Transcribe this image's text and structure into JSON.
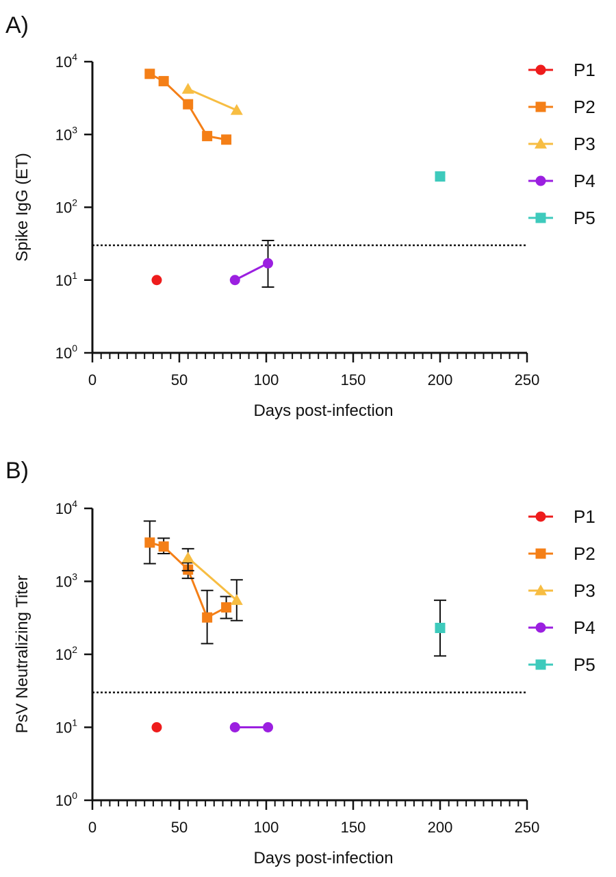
{
  "chart_data": [
    {
      "type": "scatter",
      "panel_label": "A)",
      "title": "",
      "xlabel": "Days post-infection",
      "ylabel": "Spike IgG (ET)",
      "xlim": [
        0,
        250
      ],
      "ylim": [
        1,
        10000
      ],
      "yscale": "log",
      "xticks": [
        0,
        50,
        100,
        150,
        200,
        250
      ],
      "xtick_labels": [
        "0",
        "50",
        "100",
        "150",
        "200",
        "250"
      ],
      "yticks": [
        1,
        10,
        100,
        1000,
        10000
      ],
      "ytick_base": "10",
      "ytick_exponents": [
        "0",
        "1",
        "2",
        "3",
        "4"
      ],
      "threshold": 30,
      "legend_position": "right",
      "series": [
        {
          "name": "P1",
          "color": "#ee1c1c",
          "marker": "circle",
          "x": [
            37
          ],
          "y": [
            10
          ]
        },
        {
          "name": "P2",
          "color": "#f47f17",
          "marker": "square",
          "x": [
            33,
            41,
            55,
            66,
            77
          ],
          "y": [
            6800,
            5400,
            2600,
            950,
            850
          ]
        },
        {
          "name": "P3",
          "color": "#f7bd42",
          "marker": "triangle",
          "x": [
            55,
            83
          ],
          "y": [
            4200,
            2150
          ]
        },
        {
          "name": "P4",
          "color": "#9b1fe0",
          "marker": "circle",
          "x": [
            82,
            101
          ],
          "y": [
            10,
            17
          ],
          "err_low": [
            null,
            8
          ],
          "err_high": [
            null,
            35
          ]
        },
        {
          "name": "P5",
          "color": "#3ecabc",
          "marker": "square",
          "x": [
            200
          ],
          "y": [
            265
          ],
          "no_line": true
        }
      ]
    },
    {
      "type": "scatter",
      "panel_label": "B)",
      "title": "",
      "xlabel": "Days post-infection",
      "ylabel": "PsV Neutralizing Titer",
      "xlim": [
        0,
        250
      ],
      "ylim": [
        1,
        10000
      ],
      "yscale": "log",
      "xticks": [
        0,
        50,
        100,
        150,
        200,
        250
      ],
      "xtick_labels": [
        "0",
        "50",
        "100",
        "150",
        "200",
        "250"
      ],
      "yticks": [
        1,
        10,
        100,
        1000,
        10000
      ],
      "ytick_base": "10",
      "ytick_exponents": [
        "0",
        "1",
        "2",
        "3",
        "4"
      ],
      "threshold": 30,
      "legend_position": "right",
      "series": [
        {
          "name": "P1",
          "color": "#ee1c1c",
          "marker": "circle",
          "x": [
            37
          ],
          "y": [
            10
          ]
        },
        {
          "name": "P2",
          "color": "#f47f17",
          "marker": "square",
          "x": [
            33,
            41,
            55,
            66,
            77
          ],
          "y": [
            3400,
            3000,
            1450,
            320,
            440
          ],
          "err_low": [
            1750,
            2400,
            1100,
            140,
            310
          ],
          "err_high": [
            6700,
            3900,
            1800,
            750,
            620
          ]
        },
        {
          "name": "P3",
          "color": "#f7bd42",
          "marker": "triangle",
          "x": [
            55,
            83
          ],
          "y": [
            2100,
            550
          ],
          "err_low": [
            1400,
            290
          ],
          "err_high": [
            2800,
            1050
          ]
        },
        {
          "name": "P4",
          "color": "#9b1fe0",
          "marker": "circle",
          "x": [
            82,
            101
          ],
          "y": [
            10,
            10
          ]
        },
        {
          "name": "P5",
          "color": "#3ecabc",
          "marker": "square",
          "x": [
            200
          ],
          "y": [
            230
          ],
          "err_low": [
            95
          ],
          "err_high": [
            550
          ],
          "no_line": true
        }
      ]
    }
  ]
}
